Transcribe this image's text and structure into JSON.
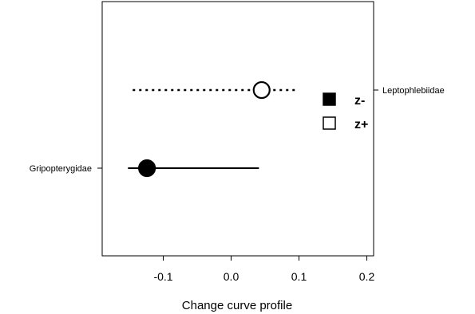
{
  "chart_data": {
    "type": "scatter",
    "title": "",
    "xlabel": "Change curve profile",
    "ylabel": "",
    "xlim": [
      -0.19,
      0.21
    ],
    "xticks": [
      -0.1,
      0.0,
      0.1,
      0.2
    ],
    "xtick_labels": [
      "-0.1",
      "0.0",
      "0.1",
      "0.2"
    ],
    "grid": false,
    "legend_position": "right",
    "series": [
      {
        "name": "z-",
        "marker": "filled-circle",
        "line_style": "solid",
        "color": "#000000",
        "points": [
          {
            "label": "Gripopterygidae",
            "x": -0.124,
            "low": -0.152,
            "high": 0.041
          }
        ]
      },
      {
        "name": "z+",
        "marker": "open-circle",
        "line_style": "dotted",
        "color": "#000000",
        "points": [
          {
            "label": "Leptophlebiidae",
            "x": 0.045,
            "low": -0.145,
            "high": 0.096
          }
        ]
      }
    ]
  }
}
